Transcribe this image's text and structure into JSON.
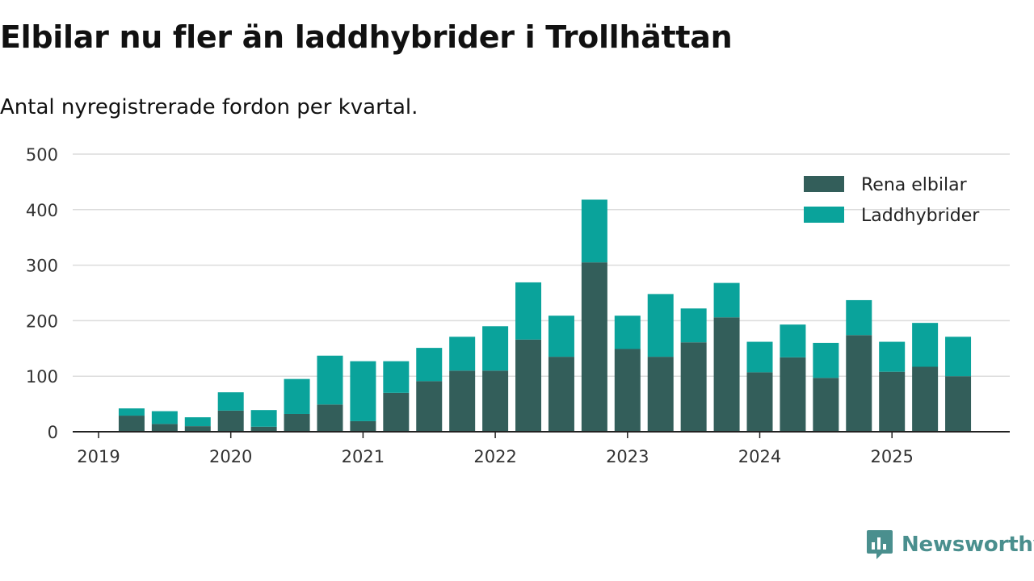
{
  "title": "Elbilar nu fler än laddhybrider i Trollhättan",
  "subtitle": "Antal nyregistrerade fordon per kvartal.",
  "brand": {
    "name": "Newsworthy",
    "icon": "newsworthy-logo-icon",
    "color": "#4a8f8e"
  },
  "chart_data": {
    "type": "bar",
    "stacked": true,
    "title": "Elbilar nu fler än laddhybrider i Trollhättan",
    "subtitle": "Antal nyregistrerade fordon per kvartal.",
    "xlabel": "",
    "ylabel": "",
    "ylim": [
      0,
      500
    ],
    "yticks": [
      0,
      100,
      200,
      300,
      400,
      500
    ],
    "xtick_labels": [
      "2019",
      "2020",
      "2021",
      "2022",
      "2023",
      "2024",
      "2025"
    ],
    "grid": true,
    "legend_position": "top-right",
    "categories": [
      "2019 K2",
      "2019 K3",
      "2019 K4",
      "2020 K1",
      "2020 K2",
      "2020 K3",
      "2020 K4",
      "2021 K1",
      "2021 K2",
      "2021 K3",
      "2021 K4",
      "2022 K1",
      "2022 K2",
      "2022 K3",
      "2022 K4",
      "2023 K1",
      "2023 K2",
      "2023 K3",
      "2023 K4",
      "2024 K1",
      "2024 K2",
      "2024 K3",
      "2024 K4",
      "2025 K1",
      "2025 K2",
      "2025 K3"
    ],
    "series": [
      {
        "name": "Rena elbilar",
        "color": "#335e5a",
        "values": [
          29,
          14,
          10,
          38,
          9,
          32,
          49,
          19,
          70,
          91,
          110,
          110,
          166,
          135,
          305,
          149,
          135,
          161,
          206,
          107,
          134,
          97,
          174,
          108,
          117,
          100
        ]
      },
      {
        "name": "Laddhybrider",
        "color": "#0aa39b",
        "values": [
          13,
          23,
          16,
          33,
          30,
          63,
          88,
          108,
          57,
          60,
          61,
          80,
          103,
          74,
          113,
          60,
          113,
          61,
          62,
          55,
          59,
          63,
          63,
          54,
          79,
          71
        ]
      }
    ]
  }
}
